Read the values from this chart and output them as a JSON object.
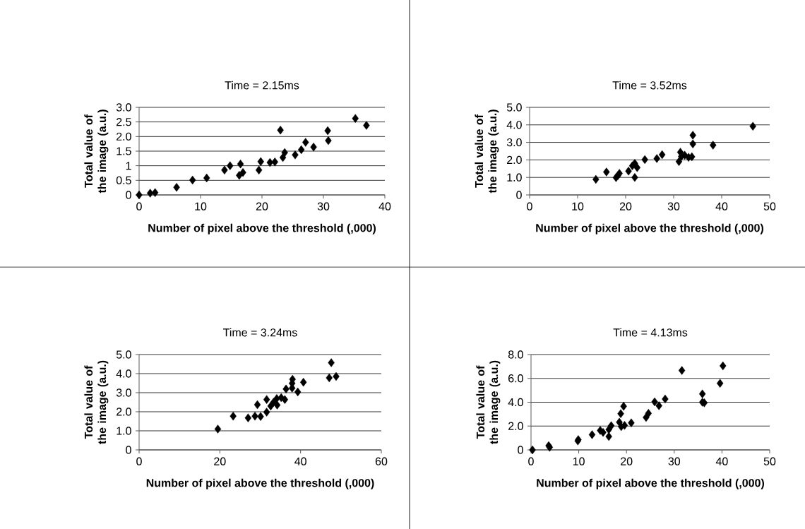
{
  "chart_data": [
    {
      "type": "scatter",
      "title": "Time = 2.15ms",
      "xlabel": "Number of pixel above the threshold (,000)",
      "ylabel": "Total value of the image (a.u.)",
      "color": "#000000",
      "marker": "diamond",
      "grid": "y",
      "x": [
        0.0,
        1.8,
        2.6,
        6.1,
        8.7,
        11.0,
        13.9,
        14.8,
        16.5,
        16.3,
        16.9,
        19.5,
        19.8,
        21.3,
        22.1,
        23.0,
        23.4,
        23.7,
        25.4,
        26.4,
        27.1,
        28.4,
        30.7,
        30.8,
        37.0,
        35.2
      ],
      "values": [
        0.0,
        0.06,
        0.08,
        0.26,
        0.51,
        0.58,
        0.85,
        1.0,
        1.06,
        0.67,
        0.77,
        0.85,
        1.14,
        1.11,
        1.13,
        2.22,
        1.28,
        1.45,
        1.37,
        1.55,
        1.8,
        1.64,
        2.2,
        1.86,
        2.38,
        2.62
      ],
      "xlim": [
        0,
        40
      ],
      "ylim": [
        0,
        3
      ],
      "xticks": [
        0,
        10,
        20,
        30,
        40
      ],
      "yticks": [
        0,
        0.5,
        1,
        1.5,
        {
          "value": 2,
          "label": "2.0"
        },
        2.5,
        {
          "value": 3,
          "label": "3.0"
        }
      ]
    },
    {
      "type": "scatter",
      "title": "Time = 3.52ms",
      "xlabel": "Number of pixel above the threshold (,000)",
      "ylabel": "Total value of the image (a.u.)",
      "color": "#000000",
      "marker": "diamond",
      "grid": "y",
      "x": [
        13.8,
        16.0,
        18.0,
        18.7,
        18.4,
        20.6,
        21.9,
        21.9,
        22.4,
        21.4,
        24.0,
        26.5,
        27.6,
        31.1,
        31.4,
        31.6,
        32.3,
        33.1,
        33.8,
        34.0,
        34.0,
        38.2,
        46.5
      ],
      "values": [
        0.89,
        1.31,
        0.99,
        1.23,
        1.11,
        1.36,
        1.8,
        1.0,
        1.56,
        1.66,
        2.02,
        2.08,
        2.3,
        1.9,
        2.44,
        2.2,
        2.27,
        2.15,
        2.18,
        3.41,
        2.91,
        2.84,
        3.92
      ],
      "xlim": [
        0,
        50
      ],
      "ylim": [
        0,
        5
      ],
      "xticks": [
        0,
        10,
        20,
        30,
        40,
        50
      ],
      "yticks": [
        0,
        {
          "value": 1,
          "label": "1.0"
        },
        {
          "value": 2,
          "label": "2.0"
        },
        {
          "value": 3,
          "label": "3.0"
        },
        {
          "value": 4,
          "label": "4.0"
        },
        {
          "value": 5,
          "label": "5.0"
        }
      ]
    },
    {
      "type": "scatter",
      "title": "Time = 3.24ms",
      "xlabel": "Number of pixel above the threshold (,000)",
      "ylabel": "Total value of the image (a.u.)",
      "color": "#000000",
      "marker": "diamond",
      "grid": "y",
      "x": [
        19.5,
        23.3,
        27.0,
        28.7,
        30.1,
        29.3,
        31.6,
        31.6,
        32.6,
        33.3,
        34.2,
        34.1,
        35.2,
        36.1,
        36.4,
        37.9,
        38.0,
        37.9,
        39.3,
        40.7,
        47.1,
        48.8,
        47.6
      ],
      "values": [
        1.09,
        1.77,
        1.68,
        1.77,
        1.75,
        2.37,
        1.98,
        2.64,
        2.3,
        2.5,
        2.35,
        2.69,
        2.74,
        2.64,
        3.19,
        3.24,
        3.7,
        3.49,
        3.04,
        3.55,
        3.78,
        3.85,
        4.57
      ],
      "xlim": [
        0,
        60
      ],
      "ylim": [
        0,
        5
      ],
      "xticks": [
        0,
        20,
        40,
        60
      ],
      "yticks": [
        0,
        {
          "value": 1,
          "label": "1.0"
        },
        {
          "value": 2,
          "label": "2.0"
        },
        {
          "value": 3,
          "label": "3.0"
        },
        {
          "value": 4,
          "label": "4.0"
        },
        {
          "value": 5,
          "label": "5.0"
        }
      ]
    },
    {
      "type": "scatter",
      "title": "Time = 4.13ms",
      "xlabel": "Number of pixel above the threshold (,000)",
      "ylabel": "Total value of the image (a.u.)",
      "color": "#000000",
      "marker": "diamond",
      "grid": "y",
      "x": [
        0.3,
        3.9,
        3.7,
        9.9,
        9.8,
        12.8,
        14.5,
        15.1,
        16.3,
        16.8,
        16.3,
        18.5,
        18.8,
        19.4,
        18.9,
        19.6,
        21.0,
        24.1,
        24.6,
        25.9,
        26.8,
        28.1,
        31.6,
        35.9,
        35.9,
        36.3,
        39.6,
        40.2
      ],
      "values": [
        0.0,
        0.22,
        0.35,
        0.86,
        0.75,
        1.28,
        1.63,
        1.47,
        1.12,
        2.03,
        1.71,
        2.32,
        3.04,
        3.66,
        1.95,
        2.06,
        2.27,
        2.72,
        3.07,
        4.03,
        3.71,
        4.27,
        6.66,
        4.7,
        4.0,
        3.95,
        5.59,
        7.05
      ],
      "xlim": [
        0,
        50
      ],
      "ylim": [
        0,
        8
      ],
      "xticks": [
        0,
        10,
        20,
        30,
        40,
        50
      ],
      "yticks": [
        0,
        {
          "value": 2,
          "label": "2.0"
        },
        {
          "value": 4,
          "label": "4.0"
        },
        {
          "value": 6,
          "label": "6.0"
        },
        {
          "value": 8,
          "label": "8.0"
        }
      ]
    }
  ]
}
